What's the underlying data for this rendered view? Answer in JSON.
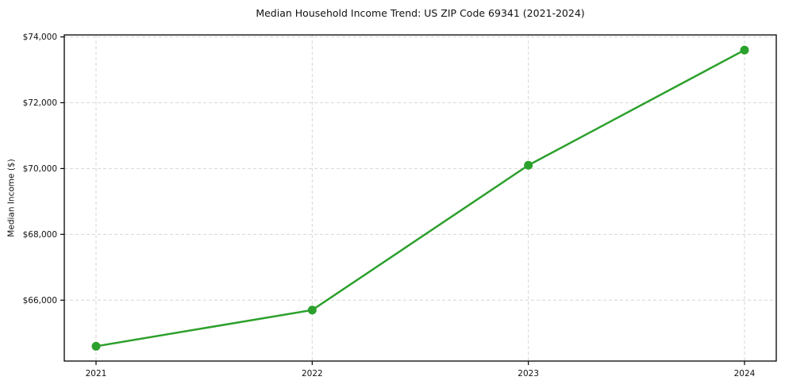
{
  "figure": {
    "background": "#ffffff",
    "text_color": "#111111",
    "axis_color": "#000000",
    "grid_color": "#d6d6d6"
  },
  "chart_data": {
    "type": "line",
    "title": "Median Household Income Trend: US ZIP Code 69341 (2021-2024)",
    "xlabel": "",
    "ylabel": "Median Income ($)",
    "categories": [
      "2021",
      "2022",
      "2023",
      "2024"
    ],
    "series": [
      {
        "name": "Median Household Income",
        "values": [
          64600,
          65700,
          70100,
          73600
        ],
        "color": "#2ca02c",
        "marker": "circle",
        "line_width": 2.5,
        "marker_radius": 5.5
      }
    ],
    "ylim": [
      64150,
      74060
    ],
    "yticks": [
      66000,
      68000,
      70000,
      72000,
      74000
    ],
    "y_tick_labels": [
      "$66,000",
      "$68,000",
      "$70,000",
      "$72,000",
      "$74,000"
    ],
    "grid": "dashed",
    "legend": "none"
  }
}
